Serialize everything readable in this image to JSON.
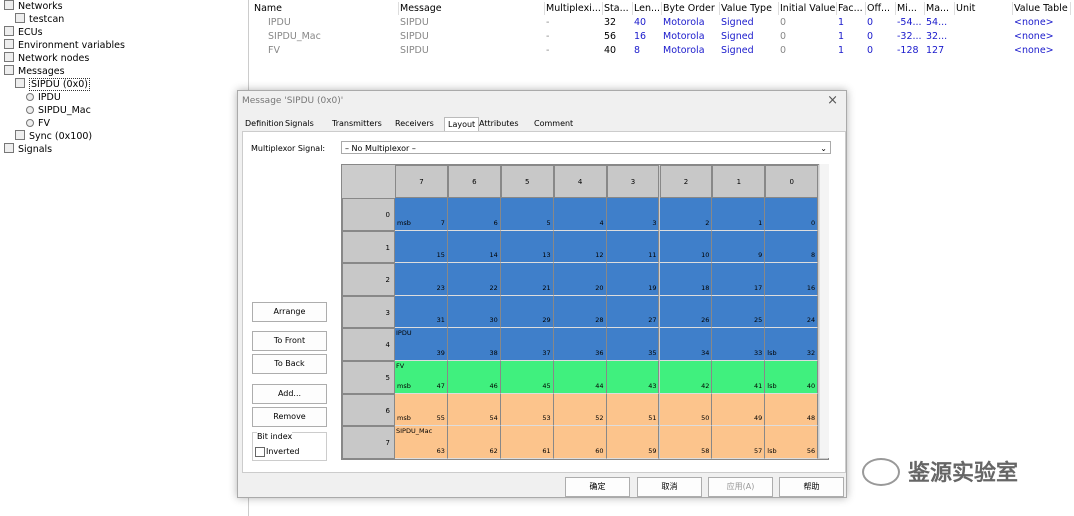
{
  "tree": [
    {
      "label": "Networks",
      "level": 0
    },
    {
      "label": "testcan",
      "level": 1
    },
    {
      "label": "ECUs",
      "level": 0
    },
    {
      "label": "Environment variables",
      "level": 0
    },
    {
      "label": "Network nodes",
      "level": 0
    },
    {
      "label": "Messages",
      "level": 0
    },
    {
      "label": "SIPDU (0x0)",
      "level": 1
    },
    {
      "label": "IPDU",
      "level": 2
    },
    {
      "label": "SIPDU_Mac",
      "level": 2
    },
    {
      "label": "FV",
      "level": 2
    },
    {
      "label": "Sync (0x100)",
      "level": 1
    },
    {
      "label": "Signals",
      "level": 0
    }
  ],
  "table": {
    "columns": [
      "Name",
      "Message",
      "Multiplexi...",
      "Sta...",
      "Len...",
      "Byte Order",
      "Value Type",
      "Initial Value",
      "Fac...",
      "Off...",
      "Mi...",
      "Ma...",
      "Unit",
      "Value Table"
    ],
    "rows": [
      [
        "IPDU",
        "SIPDU",
        "-",
        "32",
        "40",
        "Motorola",
        "Signed",
        "0",
        "1",
        "0",
        "-54...",
        "54...",
        "",
        "<none>"
      ],
      [
        "SIPDU_Mac",
        "SIPDU",
        "-",
        "56",
        "16",
        "Motorola",
        "Signed",
        "0",
        "1",
        "0",
        "-32...",
        "32...",
        "",
        "<none>"
      ],
      [
        "FV",
        "SIPDU",
        "-",
        "40",
        "8",
        "Motorola",
        "Signed",
        "0",
        "1",
        "0",
        "-128",
        "127",
        "",
        "<none>"
      ]
    ]
  },
  "dialog": {
    "title": "Message 'SIPDU (0x0)'",
    "tabs": [
      "Definition",
      "Signals",
      "Transmitters",
      "Receivers",
      "Layout",
      "Attributes",
      "Comment"
    ],
    "active_tab": 4,
    "multiplexor_label": "Multiplexor Signal:",
    "multiplexor_value": "– No Multiplexor –",
    "column_headers": [
      7,
      6,
      5,
      4,
      3,
      2,
      1,
      0
    ],
    "row_headers": [
      0,
      1,
      2,
      3,
      4,
      5,
      6,
      7
    ],
    "bits": [
      [
        7,
        6,
        5,
        4,
        3,
        2,
        1,
        0
      ],
      [
        15,
        14,
        13,
        12,
        11,
        10,
        9,
        8
      ],
      [
        23,
        22,
        21,
        20,
        19,
        18,
        17,
        16
      ],
      [
        31,
        30,
        29,
        28,
        27,
        26,
        25,
        24
      ],
      [
        39,
        38,
        37,
        36,
        35,
        34,
        33,
        32
      ],
      [
        47,
        46,
        45,
        44,
        43,
        42,
        41,
        40
      ],
      [
        55,
        54,
        53,
        52,
        51,
        50,
        49,
        48
      ],
      [
        63,
        62,
        61,
        60,
        59,
        58,
        57,
        56
      ]
    ],
    "signals": [
      {
        "name": "IPDU",
        "color": "#3f7fca",
        "rows": [
          0,
          1,
          2,
          3,
          4
        ],
        "name_row": 4,
        "msb_row": 0,
        "lsb_row": 4
      },
      {
        "name": "FV",
        "color": "#40f07e",
        "rows": [
          5
        ],
        "name_row": 5,
        "msb_row": 5,
        "lsb_row": 5
      },
      {
        "name": "SIPDU_Mac",
        "color": "#fcc48c",
        "rows": [
          6,
          7
        ],
        "name_row": 7,
        "msb_row": 6,
        "lsb_row": 7
      }
    ],
    "msb_text": "msb",
    "lsb_text": "lsb",
    "side_buttons": [
      "Arrange",
      "To Front",
      "To Back",
      "Add...",
      "Remove"
    ],
    "bit_index_label": "Bit index",
    "inverted_label": "Inverted",
    "footer_buttons": [
      "确定",
      "取消",
      "应用(A)",
      "帮助"
    ]
  },
  "watermark": "鉴源实验室"
}
